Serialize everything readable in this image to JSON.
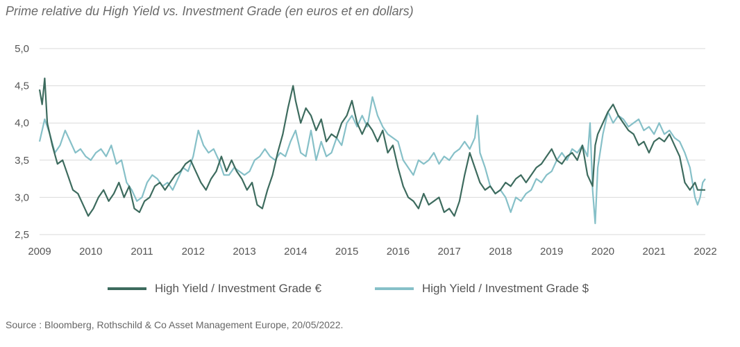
{
  "title": "Prime relative du High Yield vs. Investment Grade (en euros et en dollars)",
  "source": "Source : Bloomberg, Rothschild & Co Asset Management Europe, 20/05/2022.",
  "colors": {
    "eur": "#3d6b5e",
    "usd": "#86c0c8",
    "grid": "#d9d9d9"
  },
  "chart_data": {
    "type": "line",
    "title": "Prime relative du High Yield vs. Investment Grade (en euros et en dollars)",
    "xlabel": "",
    "ylabel": "",
    "xlim": [
      2009.0,
      2022.0
    ],
    "ylim": [
      2.5,
      5.0
    ],
    "yticks": [
      "2,5",
      "3,0",
      "3,5",
      "4,0",
      "4,5",
      "5,0"
    ],
    "xticks": [
      "2009",
      "2010",
      "2011",
      "2012",
      "2013",
      "2014",
      "2015",
      "2016",
      "2017",
      "2018",
      "2019",
      "2020",
      "2021",
      "2022"
    ],
    "grid": "horizontal",
    "legend": "bottom",
    "series": [
      {
        "name": "High Yield / Investment Grade €",
        "x": [
          2009.0,
          2009.05,
          2009.1,
          2009.15,
          2009.25,
          2009.35,
          2009.45,
          2009.55,
          2009.65,
          2009.75,
          2009.85,
          2009.95,
          2010.05,
          2010.15,
          2010.25,
          2010.35,
          2010.45,
          2010.55,
          2010.65,
          2010.75,
          2010.85,
          2010.95,
          2011.05,
          2011.15,
          2011.25,
          2011.35,
          2011.45,
          2011.55,
          2011.65,
          2011.75,
          2011.85,
          2011.95,
          2012.05,
          2012.15,
          2012.25,
          2012.35,
          2012.45,
          2012.55,
          2012.65,
          2012.75,
          2012.85,
          2012.95,
          2013.05,
          2013.15,
          2013.25,
          2013.35,
          2013.45,
          2013.55,
          2013.65,
          2013.75,
          2013.85,
          2013.95,
          2014.0,
          2014.05,
          2014.1,
          2014.2,
          2014.3,
          2014.4,
          2014.5,
          2014.6,
          2014.7,
          2014.8,
          2014.9,
          2015.0,
          2015.1,
          2015.2,
          2015.3,
          2015.4,
          2015.5,
          2015.6,
          2015.7,
          2015.8,
          2015.9,
          2016.0,
          2016.1,
          2016.2,
          2016.3,
          2016.4,
          2016.5,
          2016.6,
          2016.7,
          2016.8,
          2016.9,
          2017.0,
          2017.1,
          2017.2,
          2017.3,
          2017.4,
          2017.5,
          2017.6,
          2017.7,
          2017.8,
          2017.9,
          2018.0,
          2018.1,
          2018.2,
          2018.3,
          2018.4,
          2018.5,
          2018.6,
          2018.7,
          2018.8,
          2018.9,
          2019.0,
          2019.1,
          2019.2,
          2019.3,
          2019.4,
          2019.5,
          2019.6,
          2019.7,
          2019.8,
          2019.85,
          2019.9,
          2020.0,
          2020.1,
          2020.2,
          2020.3,
          2020.4,
          2020.5,
          2020.6,
          2020.7,
          2020.8,
          2020.9,
          2021.0,
          2021.1,
          2021.2,
          2021.3,
          2021.4,
          2021.5,
          2021.6,
          2021.7,
          2021.8,
          2021.85,
          2021.9,
          2022.0
        ],
        "y": [
          4.45,
          4.25,
          4.6,
          4.0,
          3.7,
          3.45,
          3.5,
          3.3,
          3.1,
          3.05,
          2.9,
          2.75,
          2.85,
          3.0,
          3.1,
          2.95,
          3.05,
          3.2,
          3.0,
          3.15,
          2.85,
          2.8,
          2.95,
          3.0,
          3.15,
          3.2,
          3.1,
          3.2,
          3.3,
          3.35,
          3.45,
          3.5,
          3.35,
          3.2,
          3.1,
          3.25,
          3.35,
          3.55,
          3.35,
          3.5,
          3.35,
          3.25,
          3.1,
          3.2,
          2.9,
          2.85,
          3.1,
          3.3,
          3.6,
          3.85,
          4.2,
          4.5,
          4.3,
          4.15,
          4.0,
          4.2,
          4.1,
          3.9,
          4.05,
          3.75,
          3.85,
          3.8,
          4.0,
          4.1,
          4.3,
          4.0,
          3.85,
          4.0,
          3.9,
          3.75,
          3.9,
          3.6,
          3.7,
          3.4,
          3.15,
          3.0,
          2.95,
          2.85,
          3.05,
          2.9,
          2.95,
          3.0,
          2.8,
          2.85,
          2.75,
          2.95,
          3.3,
          3.6,
          3.4,
          3.2,
          3.1,
          3.15,
          3.05,
          3.1,
          3.2,
          3.15,
          3.25,
          3.3,
          3.2,
          3.3,
          3.4,
          3.45,
          3.55,
          3.65,
          3.5,
          3.45,
          3.55,
          3.6,
          3.5,
          3.7,
          3.3,
          3.15,
          3.7,
          3.85,
          4.0,
          4.15,
          4.25,
          4.1,
          4.0,
          3.9,
          3.85,
          3.7,
          3.75,
          3.6,
          3.75,
          3.8,
          3.75,
          3.85,
          3.7,
          3.55,
          3.2,
          3.1,
          3.2,
          3.1,
          3.1,
          3.1
        ]
      },
      {
        "name": "High Yield / Investment Grade $",
        "x": [
          2009.0,
          2009.1,
          2009.2,
          2009.3,
          2009.4,
          2009.5,
          2009.6,
          2009.7,
          2009.8,
          2009.9,
          2010.0,
          2010.1,
          2010.2,
          2010.3,
          2010.4,
          2010.5,
          2010.6,
          2010.7,
          2010.8,
          2010.9,
          2011.0,
          2011.1,
          2011.2,
          2011.3,
          2011.4,
          2011.5,
          2011.6,
          2011.7,
          2011.8,
          2011.9,
          2012.0,
          2012.1,
          2012.2,
          2012.3,
          2012.4,
          2012.5,
          2012.6,
          2012.7,
          2012.8,
          2012.9,
          2013.0,
          2013.1,
          2013.2,
          2013.3,
          2013.4,
          2013.5,
          2013.6,
          2013.7,
          2013.8,
          2013.9,
          2014.0,
          2014.1,
          2014.2,
          2014.3,
          2014.4,
          2014.5,
          2014.6,
          2014.7,
          2014.8,
          2014.9,
          2015.0,
          2015.1,
          2015.2,
          2015.3,
          2015.4,
          2015.5,
          2015.6,
          2015.7,
          2015.8,
          2015.9,
          2016.0,
          2016.1,
          2016.2,
          2016.3,
          2016.4,
          2016.5,
          2016.6,
          2016.7,
          2016.8,
          2016.9,
          2017.0,
          2017.1,
          2017.2,
          2017.3,
          2017.4,
          2017.5,
          2017.55,
          2017.6,
          2017.7,
          2017.8,
          2017.9,
          2018.0,
          2018.1,
          2018.2,
          2018.3,
          2018.4,
          2018.5,
          2018.6,
          2018.7,
          2018.8,
          2018.9,
          2019.0,
          2019.1,
          2019.2,
          2019.3,
          2019.4,
          2019.5,
          2019.6,
          2019.7,
          2019.75,
          2019.8,
          2019.85,
          2019.9,
          2020.0,
          2020.1,
          2020.2,
          2020.3,
          2020.4,
          2020.5,
          2020.6,
          2020.7,
          2020.8,
          2020.9,
          2021.0,
          2021.1,
          2021.2,
          2021.3,
          2021.4,
          2021.5,
          2021.6,
          2021.7,
          2021.8,
          2021.85,
          2021.9,
          2021.95,
          2022.0
        ],
        "y": [
          3.75,
          4.05,
          3.85,
          3.6,
          3.7,
          3.9,
          3.75,
          3.6,
          3.65,
          3.55,
          3.5,
          3.6,
          3.65,
          3.55,
          3.7,
          3.45,
          3.5,
          3.2,
          3.1,
          2.95,
          3.0,
          3.2,
          3.3,
          3.25,
          3.15,
          3.2,
          3.1,
          3.25,
          3.4,
          3.35,
          3.55,
          3.9,
          3.7,
          3.6,
          3.65,
          3.5,
          3.3,
          3.3,
          3.4,
          3.35,
          3.3,
          3.35,
          3.5,
          3.55,
          3.65,
          3.55,
          3.5,
          3.6,
          3.55,
          3.75,
          3.9,
          3.6,
          3.55,
          3.9,
          3.5,
          3.75,
          3.55,
          3.6,
          3.8,
          3.7,
          4.0,
          4.1,
          3.95,
          4.1,
          3.95,
          4.35,
          4.1,
          3.95,
          3.85,
          3.8,
          3.75,
          3.5,
          3.4,
          3.3,
          3.5,
          3.45,
          3.5,
          3.6,
          3.45,
          3.55,
          3.5,
          3.6,
          3.65,
          3.75,
          3.65,
          3.8,
          4.1,
          3.6,
          3.4,
          3.15,
          3.05,
          3.1,
          3.0,
          2.8,
          3.0,
          2.95,
          3.05,
          3.1,
          3.25,
          3.2,
          3.3,
          3.35,
          3.5,
          3.6,
          3.5,
          3.65,
          3.6,
          3.7,
          3.55,
          4.0,
          3.1,
          2.65,
          3.4,
          3.85,
          4.15,
          4.0,
          4.1,
          4.05,
          3.95,
          4.0,
          4.05,
          3.9,
          3.95,
          3.85,
          4.0,
          3.85,
          3.9,
          3.8,
          3.75,
          3.6,
          3.4,
          3.0,
          2.9,
          3.0,
          3.2,
          3.25
        ]
      }
    ]
  }
}
